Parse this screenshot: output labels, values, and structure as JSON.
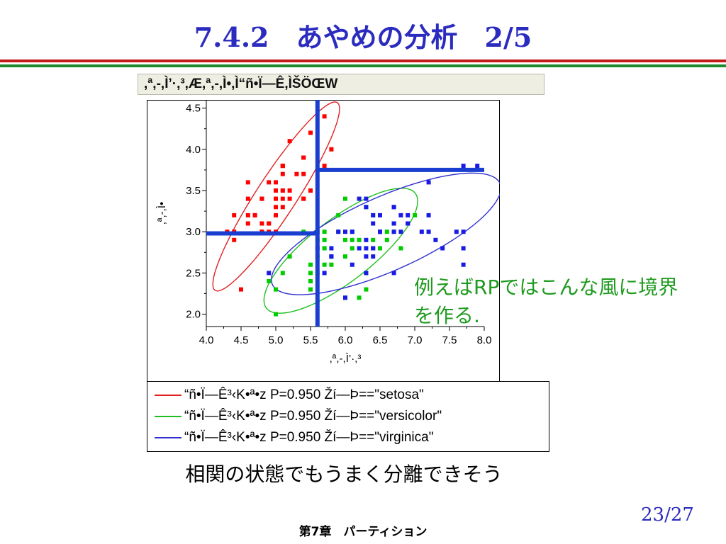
{
  "slide": {
    "title": "7.4.2　あやめの分析　2/5",
    "annotation": "例えばRPではこんな風に境界を作る.",
    "conclusion": "相関の状態でもうまく分離できそう",
    "footer": "第7章　パーティション",
    "page": "23/27",
    "accent_color": "#2b2bbf",
    "rule_colors": [
      "#c41a1a",
      "#1c8a2c"
    ]
  },
  "chart_data": {
    "type": "scatter",
    "title": ",ª,-,Ì’·,³,Æ,ª,-,Ì•,Ì“ñ•Ï—Ê,ÌŠÖŒW",
    "xlabel": ",ª,-,Ì’·,³",
    "ylabel": ",ª,-,Ì•",
    "xlim": [
      4.0,
      8.0
    ],
    "ylim": [
      1.85,
      4.6
    ],
    "xticks": [
      "4.0",
      "4.5",
      "5.0",
      "5.5",
      "6.0",
      "6.5",
      "7.0",
      "7.5",
      "8.0"
    ],
    "yticks": [
      "2.0",
      "2.5",
      "3.0",
      "3.5",
      "4.0",
      "4.5"
    ],
    "grid": false,
    "legend_position": "bottom",
    "series": [
      {
        "name": "setosa",
        "color": "#ff0000",
        "x": [
          5.1,
          4.9,
          4.7,
          4.6,
          5.0,
          5.4,
          4.6,
          5.0,
          4.4,
          4.9,
          5.4,
          4.8,
          4.8,
          4.3,
          5.8,
          5.7,
          5.4,
          5.1,
          5.7,
          5.1,
          5.4,
          5.1,
          4.6,
          5.1,
          4.8,
          5.0,
          5.0,
          5.2,
          5.2,
          4.7,
          4.8,
          5.4,
          5.2,
          5.5,
          4.9,
          5.0,
          5.5,
          4.9,
          4.4,
          5.1,
          5.0,
          4.5,
          4.4,
          5.0,
          5.1,
          4.8,
          5.1,
          4.6,
          5.3,
          5.0
        ],
        "y": [
          3.5,
          3.0,
          3.2,
          3.1,
          3.6,
          3.9,
          3.4,
          3.4,
          2.9,
          3.1,
          3.7,
          3.4,
          3.0,
          3.0,
          4.0,
          4.4,
          3.9,
          3.5,
          3.8,
          3.8,
          3.4,
          3.7,
          3.6,
          3.3,
          3.4,
          3.0,
          3.4,
          3.5,
          3.4,
          3.2,
          3.1,
          3.4,
          4.1,
          4.2,
          3.1,
          3.2,
          3.5,
          3.6,
          3.0,
          3.4,
          3.5,
          2.3,
          3.2,
          3.5,
          3.8,
          3.0,
          3.8,
          3.2,
          3.7,
          3.3
        ]
      },
      {
        "name": "versicolor",
        "color": "#00cc00",
        "x": [
          7.0,
          6.4,
          6.9,
          5.5,
          6.5,
          5.7,
          6.3,
          4.9,
          6.6,
          5.2,
          5.0,
          5.9,
          6.0,
          6.1,
          5.6,
          6.7,
          5.6,
          5.8,
          6.2,
          5.6,
          5.9,
          6.1,
          6.3,
          6.1,
          6.4,
          6.6,
          6.8,
          6.7,
          6.0,
          5.7,
          5.5,
          5.5,
          5.8,
          6.0,
          5.4,
          6.0,
          6.7,
          6.3,
          5.6,
          5.5,
          5.5,
          6.1,
          5.8,
          5.0,
          5.6,
          5.7,
          5.7,
          6.2,
          5.1,
          5.7
        ],
        "y": [
          3.2,
          3.2,
          3.1,
          2.3,
          2.8,
          2.8,
          3.3,
          2.4,
          2.9,
          2.7,
          2.0,
          3.0,
          2.2,
          2.9,
          2.9,
          3.1,
          3.0,
          2.7,
          2.2,
          2.5,
          3.2,
          2.8,
          2.5,
          2.8,
          2.9,
          3.0,
          2.8,
          3.0,
          2.9,
          2.6,
          2.4,
          2.4,
          2.7,
          2.7,
          3.0,
          3.4,
          3.1,
          2.3,
          3.0,
          2.5,
          2.6,
          3.0,
          2.6,
          2.3,
          2.7,
          3.0,
          2.9,
          2.9,
          2.5,
          2.8
        ]
      },
      {
        "name": "virginica",
        "color": "#1a1ae6",
        "x": [
          6.3,
          5.8,
          7.1,
          6.3,
          6.5,
          7.6,
          4.9,
          7.3,
          6.7,
          7.2,
          6.5,
          6.4,
          6.8,
          5.7,
          5.8,
          6.4,
          6.5,
          7.7,
          7.7,
          6.0,
          6.9,
          5.6,
          7.7,
          6.3,
          6.7,
          7.2,
          6.2,
          6.1,
          6.4,
          7.2,
          7.4,
          7.9,
          6.4,
          6.3,
          6.1,
          7.7,
          6.3,
          6.4,
          6.0,
          6.9,
          6.7,
          6.9,
          5.8,
          6.8,
          6.7,
          6.7,
          6.3,
          6.5,
          6.2,
          5.9
        ],
        "y": [
          3.3,
          2.7,
          3.0,
          2.9,
          3.0,
          3.0,
          2.5,
          2.9,
          2.5,
          3.6,
          3.2,
          2.7,
          3.0,
          2.5,
          2.8,
          3.2,
          3.0,
          3.8,
          2.6,
          2.2,
          3.2,
          2.8,
          2.8,
          2.7,
          3.3,
          3.2,
          2.8,
          3.0,
          2.8,
          3.0,
          2.8,
          3.8,
          2.8,
          2.8,
          2.6,
          3.0,
          3.4,
          3.1,
          3.0,
          3.1,
          3.1,
          3.1,
          2.7,
          3.2,
          3.3,
          3.0,
          2.5,
          3.0,
          3.4,
          3.0
        ]
      }
    ],
    "density_ellipses": [
      {
        "series": "setosa",
        "color": "#e02020",
        "cx": 5.006,
        "cy": 3.428,
        "rx": 1.44,
        "ry": 0.27,
        "angle_deg": 52,
        "label": "“ñ•Ï—Ê³‹K•ª•z P=0.950  Ží—Þ==\"setosa\""
      },
      {
        "series": "versicolor",
        "color": "#20c020",
        "cx": 5.936,
        "cy": 2.77,
        "rx": 1.28,
        "ry": 0.4,
        "angle_deg": 32,
        "label": "“ñ•Ï—Ê³‹K•ª•z P=0.950  Ží—Þ==\"versicolor\""
      },
      {
        "series": "virginica",
        "color": "#3030d0",
        "cx": 6.588,
        "cy": 2.974,
        "rx": 1.75,
        "ry": 0.46,
        "angle_deg": 20,
        "label": "“ñ•Ï—Ê³‹K•ª•z P=0.950  Ží—Þ==\"virginica\""
      }
    ],
    "partition_lines": [
      {
        "orient": "v",
        "x": 5.6,
        "y0": 1.85,
        "y1": 4.6
      },
      {
        "orient": "h",
        "y": 2.98,
        "x0": 4.0,
        "x1": 5.6
      },
      {
        "orient": "h",
        "y": 3.75,
        "x0": 5.6,
        "x1": 8.0
      }
    ],
    "partition_color": "#1a3fd0"
  }
}
